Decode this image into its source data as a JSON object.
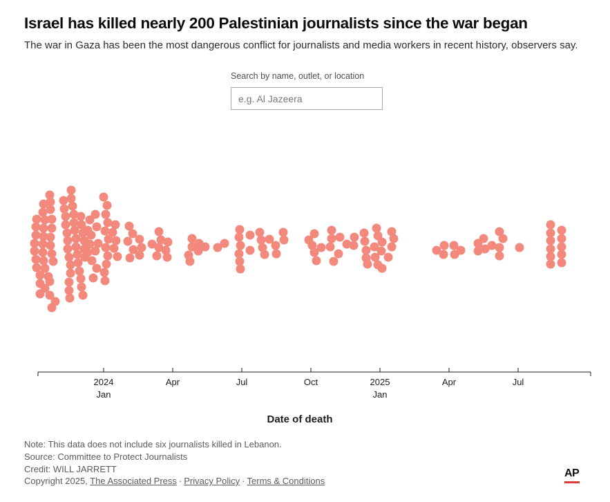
{
  "header": {
    "title": "Israel has killed nearly 200 Palestinian journalists since the war began",
    "subtitle": "The war in Gaza has been the most dangerous conflict for journalists and media workers in recent history, observers say."
  },
  "search": {
    "label": "Search by name, outlet, or location",
    "placeholder": "e.g. Al Jazeera",
    "value": ""
  },
  "chart_data": {
    "type": "scatter",
    "variant": "beeswarm",
    "description": "Each dot represents one Palestinian journalist killed, positioned horizontally by date of death from October 2023 to August 2025. Dense cluster Oct 2023 - Jan 2024, thinning afterwards.",
    "title": "",
    "xlabel": "Date of death",
    "ylabel": "",
    "x_axis_range": [
      "Oct 2023",
      "Sep 2025"
    ],
    "grid": false,
    "legend": false,
    "dot_color": "#f3897d",
    "dot_radius": 6.5,
    "axis": {
      "x_start": 55,
      "x_end": 855,
      "y": 538,
      "color": "#1c1c1c",
      "tick_len_in": 6,
      "tick_len_out": 6
    },
    "axis_title_x": 434,
    "axis_title_y": 611,
    "x_ticks": [
      {
        "x": 150,
        "line1": "2024",
        "line2": "Jan"
      },
      {
        "x": 250,
        "line1": "Apr",
        "line2": ""
      },
      {
        "x": 350,
        "line1": "Jul",
        "line2": ""
      },
      {
        "x": 450,
        "line1": "Oct",
        "line2": ""
      },
      {
        "x": 550,
        "line1": "2025",
        "line2": "Jan"
      },
      {
        "x": 650,
        "line1": "Apr",
        "line2": ""
      },
      {
        "x": 750,
        "line1": "Jul",
        "line2": ""
      }
    ],
    "points": [
      [
        72,
        282
      ],
      [
        63,
        295
      ],
      [
        73,
        292
      ],
      [
        62,
        307
      ],
      [
        53,
        317
      ],
      [
        65,
        318
      ],
      [
        73,
        303
      ],
      [
        75,
        317
      ],
      [
        52,
        328
      ],
      [
        63,
        330
      ],
      [
        75,
        330
      ],
      [
        52,
        340
      ],
      [
        63,
        342
      ],
      [
        73,
        343
      ],
      [
        50,
        352
      ],
      [
        62,
        353
      ],
      [
        73,
        355
      ],
      [
        50,
        363
      ],
      [
        62,
        365
      ],
      [
        75,
        367
      ],
      [
        52,
        375
      ],
      [
        63,
        377
      ],
      [
        77,
        378
      ],
      [
        53,
        387
      ],
      [
        65,
        388
      ],
      [
        58,
        398
      ],
      [
        70,
        400
      ],
      [
        58,
        410
      ],
      [
        72,
        407
      ],
      [
        65,
        417
      ],
      [
        58,
        425
      ],
      [
        72,
        427
      ],
      [
        80,
        436
      ],
      [
        75,
        445
      ],
      [
        103,
        275
      ],
      [
        92,
        290
      ],
      [
        103,
        287
      ],
      [
        93,
        302
      ],
      [
        105,
        298
      ],
      [
        95,
        313
      ],
      [
        107,
        310
      ],
      [
        117,
        313
      ],
      [
        95,
        325
      ],
      [
        107,
        322
      ],
      [
        118,
        325
      ],
      [
        97,
        337
      ],
      [
        108,
        333
      ],
      [
        120,
        337
      ],
      [
        98,
        348
      ],
      [
        110,
        345
      ],
      [
        122,
        348
      ],
      [
        98,
        360
      ],
      [
        110,
        357
      ],
      [
        122,
        360
      ],
      [
        100,
        372
      ],
      [
        112,
        368
      ],
      [
        123,
        372
      ],
      [
        102,
        383
      ],
      [
        113,
        380
      ],
      [
        102,
        395
      ],
      [
        115,
        392
      ],
      [
        100,
        408
      ],
      [
        117,
        403
      ],
      [
        100,
        420
      ],
      [
        118,
        415
      ],
      [
        101,
        431
      ],
      [
        120,
        427
      ],
      [
        130,
        318
      ],
      [
        138,
        310
      ],
      [
        127,
        333
      ],
      [
        140,
        328
      ],
      [
        132,
        340
      ],
      [
        142,
        352
      ],
      [
        130,
        353
      ],
      [
        127,
        365
      ],
      [
        138,
        363
      ],
      [
        133,
        377
      ],
      [
        140,
        388
      ],
      [
        135,
        402
      ],
      [
        150,
        285
      ],
      [
        155,
        297
      ],
      [
        153,
        310
      ],
      [
        156,
        322
      ],
      [
        152,
        334
      ],
      [
        157,
        346
      ],
      [
        153,
        358
      ],
      [
        156,
        370
      ],
      [
        154,
        382
      ],
      [
        151,
        394
      ],
      [
        152,
        406
      ],
      [
        167,
        325
      ],
      [
        163,
        336
      ],
      [
        168,
        348
      ],
      [
        165,
        359
      ],
      [
        170,
        371
      ],
      [
        187,
        327
      ],
      [
        192,
        338
      ],
      [
        185,
        349
      ],
      [
        193,
        361
      ],
      [
        188,
        373
      ],
      [
        202,
        346
      ],
      [
        205,
        358
      ],
      [
        202,
        369
      ],
      [
        230,
        335
      ],
      [
        233,
        347
      ],
      [
        243,
        350
      ],
      [
        220,
        353
      ],
      [
        230,
        358
      ],
      [
        240,
        362
      ],
      [
        227,
        370
      ],
      [
        242,
        372
      ],
      [
        278,
        345
      ],
      [
        288,
        352
      ],
      [
        278,
        357
      ],
      [
        297,
        357
      ],
      [
        287,
        363
      ],
      [
        273,
        369
      ],
      [
        275,
        378
      ],
      [
        315,
        358
      ],
      [
        325,
        352
      ],
      [
        347,
        332
      ],
      [
        346,
        343
      ],
      [
        348,
        355
      ],
      [
        346,
        367
      ],
      [
        347,
        378
      ],
      [
        348,
        389
      ],
      [
        362,
        340
      ],
      [
        362,
        362
      ],
      [
        376,
        336
      ],
      [
        378,
        347
      ],
      [
        380,
        358
      ],
      [
        383,
        368
      ],
      [
        390,
        346
      ],
      [
        399,
        355
      ],
      [
        400,
        367
      ],
      [
        410,
        336
      ],
      [
        411,
        347
      ],
      [
        455,
        338
      ],
      [
        447,
        347
      ],
      [
        452,
        355
      ],
      [
        455,
        365
      ],
      [
        458,
        377
      ],
      [
        465,
        358
      ],
      [
        480,
        333
      ],
      [
        480,
        345
      ],
      [
        478,
        357
      ],
      [
        492,
        343
      ],
      [
        490,
        367
      ],
      [
        483,
        378
      ],
      [
        502,
        353
      ],
      [
        513,
        343
      ],
      [
        512,
        355
      ],
      [
        527,
        337
      ],
      [
        528,
        349
      ],
      [
        530,
        362
      ],
      [
        530,
        373
      ],
      [
        532,
        382
      ],
      [
        545,
        330
      ],
      [
        547,
        341
      ],
      [
        542,
        357
      ],
      [
        553,
        350
      ],
      [
        552,
        363
      ],
      [
        543,
        372
      ],
      [
        547,
        383
      ],
      [
        553,
        388
      ],
      [
        567,
        335
      ],
      [
        570,
        345
      ],
      [
        567,
        357
      ],
      [
        562,
        372
      ],
      [
        632,
        362
      ],
      [
        643,
        355
      ],
      [
        642,
        368
      ],
      [
        657,
        355
      ],
      [
        658,
        368
      ],
      [
        667,
        362
      ],
      [
        692,
        352
      ],
      [
        700,
        345
      ],
      [
        702,
        360
      ],
      [
        692,
        363
      ],
      [
        712,
        355
      ],
      [
        723,
        335
      ],
      [
        728,
        345
      ],
      [
        723,
        358
      ],
      [
        723,
        370
      ],
      [
        752,
        358
      ],
      [
        797,
        325
      ],
      [
        797,
        337
      ],
      [
        797,
        348
      ],
      [
        797,
        360
      ],
      [
        797,
        371
      ],
      [
        797,
        382
      ],
      [
        813,
        333
      ],
      [
        813,
        345
      ],
      [
        813,
        357
      ],
      [
        813,
        368
      ],
      [
        813,
        380
      ]
    ]
  },
  "footer": {
    "note": "Note: This data does not include six journalists killed in Lebanon.",
    "source": "Source: Committee to Protect Journalists",
    "credit": "Credit: WILL JARRETT",
    "copyright_prefix": "Copyright 2025, ",
    "links": [
      "The Associated Press",
      "Privacy Policy",
      "Terms & Conditions"
    ],
    "separator": "·"
  },
  "logo": {
    "text": "AP",
    "underline_color": "#e13c32"
  }
}
